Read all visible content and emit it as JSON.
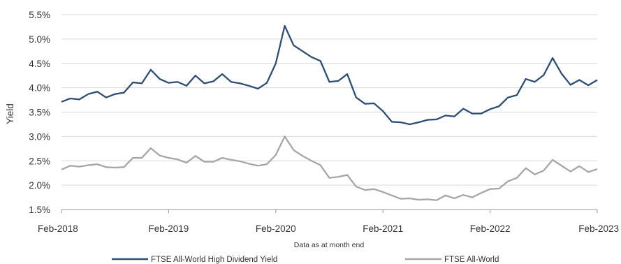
{
  "chart_data": {
    "type": "line",
    "title": "",
    "xlabel": "",
    "ylabel": "Yield",
    "note": "Data as at month end",
    "ylim": [
      1.5,
      5.5
    ],
    "yticks": [
      "1.5%",
      "2.0%",
      "2.5%",
      "3.0%",
      "3.5%",
      "4.0%",
      "4.5%",
      "5.0%",
      "5.5%"
    ],
    "ytick_values": [
      1.5,
      2.0,
      2.5,
      3.0,
      3.5,
      4.0,
      4.5,
      5.0,
      5.5
    ],
    "xticks": [
      "Feb-2018",
      "Feb-2019",
      "Feb-2020",
      "Feb-2021",
      "Feb-2022",
      "Feb-2023"
    ],
    "grid": "horizontal",
    "legend": "bottom",
    "x_start": "Feb-2018",
    "x_end": "Feb-2023",
    "x_step": "monthly",
    "series": [
      {
        "name": "FTSE All-World High Dividend Yield",
        "color": "#2e4d75",
        "values": [
          3.71,
          3.78,
          3.76,
          3.87,
          3.92,
          3.8,
          3.87,
          3.9,
          4.11,
          4.09,
          4.37,
          4.18,
          4.1,
          4.12,
          4.04,
          4.25,
          4.09,
          4.13,
          4.28,
          4.12,
          4.09,
          4.04,
          3.98,
          4.1,
          4.5,
          5.27,
          4.87,
          4.75,
          4.63,
          4.55,
          4.12,
          4.14,
          4.28,
          3.8,
          3.67,
          3.68,
          3.52,
          3.3,
          3.29,
          3.25,
          3.29,
          3.34,
          3.35,
          3.43,
          3.41,
          3.57,
          3.47,
          3.47,
          3.56,
          3.62,
          3.8,
          3.85,
          4.18,
          4.12,
          4.26,
          4.61,
          4.29,
          4.06,
          4.16,
          4.05,
          4.16
        ]
      },
      {
        "name": "FTSE All-World",
        "color": "#a6a6a6",
        "values": [
          2.32,
          2.4,
          2.38,
          2.41,
          2.43,
          2.37,
          2.36,
          2.37,
          2.56,
          2.56,
          2.76,
          2.61,
          2.56,
          2.53,
          2.46,
          2.6,
          2.48,
          2.48,
          2.56,
          2.52,
          2.49,
          2.44,
          2.4,
          2.43,
          2.62,
          3.0,
          2.72,
          2.6,
          2.5,
          2.41,
          2.15,
          2.17,
          2.21,
          1.97,
          1.9,
          1.92,
          1.86,
          1.79,
          1.72,
          1.73,
          1.7,
          1.71,
          1.69,
          1.79,
          1.73,
          1.8,
          1.75,
          1.84,
          1.92,
          1.93,
          2.08,
          2.15,
          2.35,
          2.22,
          2.3,
          2.52,
          2.4,
          2.28,
          2.39,
          2.27,
          2.33
        ]
      }
    ]
  }
}
